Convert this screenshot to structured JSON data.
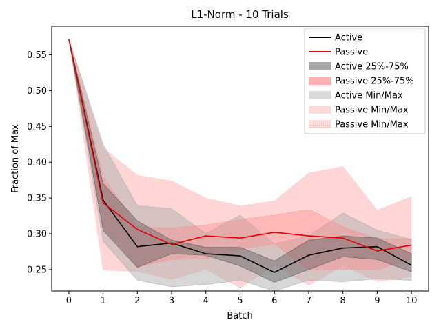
{
  "chart_data": {
    "type": "line",
    "title": "L1-Norm - 10 Trials",
    "xlabel": "Batch",
    "ylabel": "Fraction of Max",
    "x": [
      0,
      1,
      2,
      3,
      4,
      5,
      6,
      7,
      8,
      9,
      10
    ],
    "xlim": [
      -0.5,
      10.5
    ],
    "ylim": [
      0.22,
      0.59
    ],
    "yticks": [
      0.25,
      0.3,
      0.35,
      0.4,
      0.45,
      0.5,
      0.55
    ],
    "ytick_labels": [
      "0.25",
      "0.30",
      "0.35",
      "0.40",
      "0.45",
      "0.50",
      "0.55"
    ],
    "xticks": [
      0,
      1,
      2,
      3,
      4,
      5,
      6,
      7,
      8,
      9,
      10
    ],
    "xtick_labels": [
      "0",
      "1",
      "2",
      "3",
      "4",
      "5",
      "6",
      "7",
      "8",
      "9",
      "10"
    ],
    "grid": false,
    "legend_position": "top-right",
    "series": [
      {
        "name": "Active",
        "kind": "line",
        "color": "#000000",
        "values": [
          0.572,
          0.347,
          0.282,
          0.287,
          0.272,
          0.269,
          0.246,
          0.27,
          0.28,
          0.282,
          0.256
        ]
      },
      {
        "name": "Passive",
        "kind": "line",
        "color": "#e00000",
        "values": [
          0.572,
          0.343,
          0.306,
          0.285,
          0.297,
          0.294,
          0.302,
          0.297,
          0.294,
          0.276,
          0.284
        ]
      }
    ],
    "bands": [
      {
        "name": "Passive Min/Max",
        "color": "#ffb3b3",
        "opacity": 0.55,
        "lower": [
          0.572,
          0.249,
          0.247,
          0.236,
          0.25,
          0.224,
          0.255,
          0.228,
          0.255,
          0.233,
          0.24
        ],
        "upper": [
          0.572,
          0.42,
          0.382,
          0.374,
          0.35,
          0.339,
          0.346,
          0.385,
          0.394,
          0.333,
          0.352
        ]
      },
      {
        "name": "Active Min/Max",
        "color": "#b0b0b0",
        "opacity": 0.5,
        "lower": [
          0.572,
          0.29,
          0.235,
          0.226,
          0.229,
          0.235,
          0.22,
          0.235,
          0.233,
          0.237,
          0.235
        ],
        "upper": [
          0.572,
          0.425,
          0.339,
          0.335,
          0.3,
          0.326,
          0.286,
          0.297,
          0.329,
          0.305,
          0.292
        ]
      },
      {
        "name": "Passive 25%-75%",
        "color": "#ff8080",
        "opacity": 0.35,
        "lower": [
          0.572,
          0.31,
          0.254,
          0.264,
          0.265,
          0.278,
          0.286,
          0.249,
          0.25,
          0.249,
          0.265
        ],
        "upper": [
          0.572,
          0.38,
          0.31,
          0.308,
          0.312,
          0.32,
          0.326,
          0.334,
          0.31,
          0.293,
          0.293
        ]
      },
      {
        "name": "Active 25%-75%",
        "color": "#606060",
        "opacity": 0.45,
        "lower": [
          0.572,
          0.305,
          0.253,
          0.272,
          0.27,
          0.255,
          0.232,
          0.25,
          0.268,
          0.264,
          0.247
        ],
        "upper": [
          0.572,
          0.37,
          0.318,
          0.291,
          0.281,
          0.281,
          0.262,
          0.291,
          0.297,
          0.294,
          0.272
        ]
      }
    ],
    "legend": [
      {
        "label": "Active",
        "swatch": "line",
        "color": "#000000"
      },
      {
        "label": "Passive",
        "swatch": "line",
        "color": "#e00000"
      },
      {
        "label": "Active 25%-75%",
        "swatch": "patch",
        "color": "#a8a8a8"
      },
      {
        "label": "Passive 25%-75%",
        "swatch": "patch",
        "color": "#ffb0b0"
      },
      {
        "label": "Active Min/Max",
        "swatch": "patch",
        "color": "#d9d9d9"
      },
      {
        "label": "Passive Min/Max",
        "swatch": "patch",
        "color": "#ffdada"
      },
      {
        "label": "Passive Min/Max",
        "swatch": "hatch",
        "color": "#ffd0d0"
      }
    ]
  }
}
